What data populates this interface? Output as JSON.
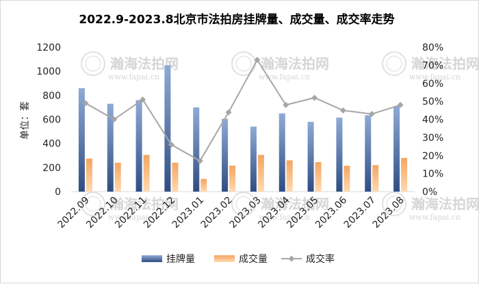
{
  "chart_data": {
    "type": "bar+line",
    "title": "2022.9-2023.8北京市法拍房挂牌量、成交量、成交率走势",
    "ylabel": "单位：套",
    "categories": [
      "2022.09",
      "2022.10",
      "2022.11",
      "2022.12",
      "2023.01",
      "2023.02",
      "2023.03",
      "2023.04",
      "2023.05",
      "2023.06",
      "2023.07",
      "2023.08"
    ],
    "series": [
      {
        "name": "挂牌量",
        "type": "bar",
        "axis": "left",
        "color": "#4a6da6",
        "values": [
          860,
          730,
          760,
          1050,
          700,
          605,
          540,
          650,
          580,
          615,
          635,
          710
        ]
      },
      {
        "name": "成交量",
        "type": "bar",
        "axis": "left",
        "color": "#f39a4a",
        "values": [
          275,
          240,
          305,
          240,
          105,
          215,
          305,
          260,
          245,
          215,
          220,
          280
        ]
      },
      {
        "name": "成交率",
        "type": "line",
        "axis": "right",
        "color": "#a6a6a6",
        "values": [
          0.49,
          0.4,
          0.51,
          0.26,
          0.17,
          0.44,
          0.73,
          0.48,
          0.52,
          0.45,
          0.43,
          0.48
        ]
      }
    ],
    "left_axis": {
      "ylim": [
        0,
        1200
      ],
      "ticks": [
        "0",
        "200",
        "400",
        "600",
        "800",
        "1000",
        "1200"
      ]
    },
    "right_axis": {
      "ylim": [
        0,
        0.8
      ],
      "ticks": [
        "0%",
        "10%",
        "20%",
        "30%",
        "40%",
        "50%",
        "60%",
        "70%",
        "80%"
      ]
    },
    "legend": "bottom",
    "grid": false
  },
  "watermark": {
    "text": "瀚海法拍网",
    "url": "www.fapai.cn"
  }
}
